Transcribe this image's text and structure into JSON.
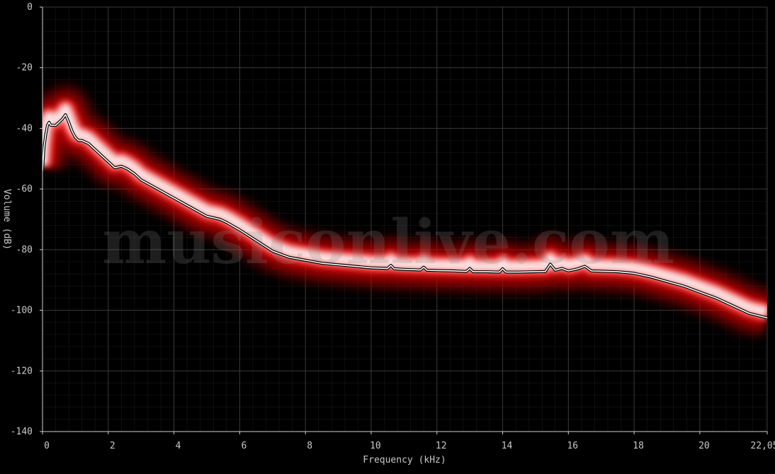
{
  "chart_data": {
    "type": "area",
    "xlabel": "Frequency (kHz)",
    "ylabel": "Volume (dB)",
    "xlim": [
      0,
      22.05
    ],
    "ylim": [
      -140,
      0
    ],
    "x_ticks": [
      {
        "value": 0,
        "label": "0"
      },
      {
        "value": 2,
        "label": "2"
      },
      {
        "value": 4,
        "label": "4"
      },
      {
        "value": 6,
        "label": "6"
      },
      {
        "value": 8,
        "label": "8"
      },
      {
        "value": 10,
        "label": "10"
      },
      {
        "value": 12,
        "label": "12"
      },
      {
        "value": 14,
        "label": "14"
      },
      {
        "value": 16,
        "label": "16"
      },
      {
        "value": 18,
        "label": "18"
      },
      {
        "value": 20,
        "label": "20"
      },
      {
        "value": 22.05,
        "label": "22,05"
      }
    ],
    "y_ticks": [
      {
        "value": 0,
        "label": "0"
      },
      {
        "value": -20,
        "label": "-20"
      },
      {
        "value": -40,
        "label": "-40"
      },
      {
        "value": -60,
        "label": "-60"
      },
      {
        "value": -80,
        "label": "-80"
      },
      {
        "value": -100,
        "label": "-100"
      },
      {
        "value": -120,
        "label": "-120"
      },
      {
        "value": -140,
        "label": "-140"
      }
    ],
    "grid": true,
    "minor_grid": true,
    "watermark": "musiconlive.com",
    "colors": {
      "background": "#000000",
      "grid": "#2a2a2a",
      "density_core": "#ffffff",
      "density_glow": "#c00000",
      "average_line": "#ffffff"
    },
    "series": [
      {
        "x": [
          0.0,
          0.05,
          0.1,
          0.15,
          0.2,
          0.25,
          0.3,
          0.4,
          0.5,
          0.6,
          0.7,
          0.8,
          0.9,
          1.0,
          1.1,
          1.2,
          1.4,
          1.6,
          1.8,
          2.0,
          2.2,
          2.4,
          2.5,
          2.6,
          2.8,
          3.0,
          3.5,
          4.0,
          4.5,
          5.0,
          5.4,
          5.6,
          6.0,
          6.5,
          7.0,
          7.5,
          8.0,
          8.5,
          9.0,
          9.5,
          10.0,
          10.5,
          10.6,
          10.7,
          11.0,
          11.5,
          11.6,
          11.7,
          12.0,
          12.5,
          12.9,
          13.0,
          13.1,
          13.5,
          13.9,
          14.0,
          14.1,
          14.5,
          15.0,
          15.3,
          15.45,
          15.6,
          15.8,
          16.0,
          16.3,
          16.5,
          16.7,
          17.0,
          17.5,
          18.0,
          18.5,
          19.0,
          19.5,
          20.0,
          20.5,
          21.0,
          21.5,
          22.05
        ],
        "values": [
          -54,
          -46,
          -42,
          -39,
          -38,
          -39,
          -39,
          -39,
          -38,
          -37,
          -35.5,
          -38,
          -41,
          -43,
          -44,
          -44,
          -45,
          -47,
          -49,
          -51,
          -53,
          -52.5,
          -53,
          -53.5,
          -55,
          -57,
          -60,
          -63,
          -66,
          -69,
          -70,
          -71,
          -73.5,
          -77,
          -80.5,
          -82.5,
          -83.5,
          -84.5,
          -85,
          -85.5,
          -86,
          -86.2,
          -85.2,
          -86.3,
          -86.5,
          -86.7,
          -85.8,
          -86.8,
          -86.9,
          -87,
          -87.2,
          -86.2,
          -87.3,
          -87.3,
          -87.4,
          -86.3,
          -87.4,
          -87.4,
          -87.3,
          -87.2,
          -84.8,
          -86.8,
          -86.2,
          -87,
          -86.3,
          -85.5,
          -87,
          -87.1,
          -87.3,
          -87.8,
          -89,
          -90.5,
          -92,
          -94,
          -96,
          -98.5,
          -101,
          -102.5
        ]
      }
    ]
  }
}
